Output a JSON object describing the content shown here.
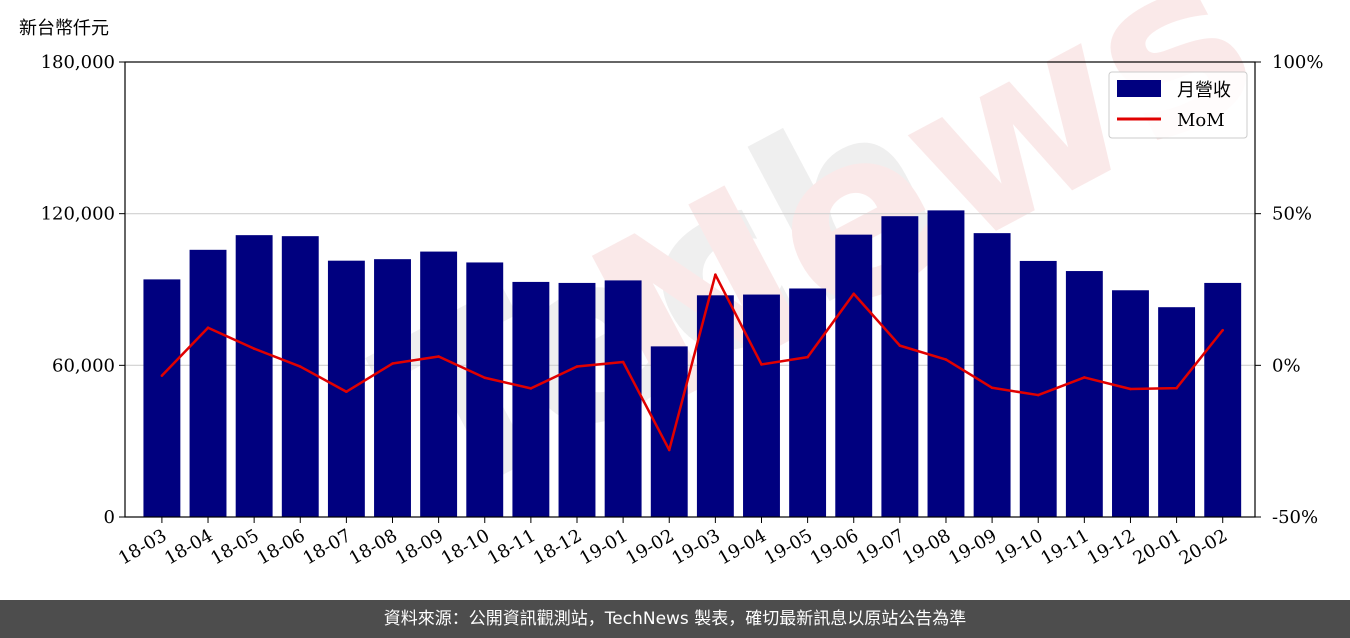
{
  "chart_data": {
    "type": "bar",
    "unit_label": "新台幣仟元",
    "categories": [
      "18-03",
      "18-04",
      "18-05",
      "18-06",
      "18-07",
      "18-08",
      "18-09",
      "18-10",
      "18-11",
      "18-12",
      "19-01",
      "19-02",
      "19-03",
      "19-04",
      "19-05",
      "19-06",
      "19-07",
      "19-08",
      "19-09",
      "19-10",
      "19-11",
      "19-12",
      "20-01",
      "20-02"
    ],
    "series": [
      {
        "name": "月營收",
        "kind": "bar",
        "axis": "left",
        "color": "#00007f",
        "values": [
          94000,
          105700,
          111500,
          111100,
          101400,
          102000,
          105000,
          100700,
          93000,
          92600,
          93600,
          67500,
          87700,
          88000,
          90400,
          111700,
          119000,
          121300,
          112300,
          101300,
          97300,
          89700,
          83000,
          92600
        ]
      },
      {
        "name": "MoM",
        "kind": "line",
        "axis": "right",
        "color": "#e00000",
        "unit": "%",
        "values": [
          -3.4,
          12.4,
          5.5,
          -0.4,
          -8.7,
          0.6,
          2.9,
          -4.1,
          -7.6,
          -0.4,
          1.1,
          -27.9,
          29.9,
          0.3,
          2.7,
          23.6,
          6.5,
          1.9,
          -7.4,
          -9.8,
          -4.0,
          -7.8,
          -7.5,
          11.6
        ]
      }
    ],
    "y_left": {
      "ylim": [
        0,
        180000
      ],
      "ticks": [
        0,
        60000,
        120000,
        180000
      ],
      "tick_labels": [
        "0",
        "60,000",
        "120,000",
        "180,000"
      ]
    },
    "y_right": {
      "ylim": [
        -50,
        100
      ],
      "ticks": [
        -50,
        0,
        50,
        100
      ],
      "tick_labels": [
        "-50%",
        "0%",
        "50%",
        "100%"
      ]
    },
    "grid": "horizontal",
    "legend_placement": "top-right",
    "watermark": "TechNews"
  },
  "footer": {
    "text": "資料來源：公開資訊觀測站，TechNews 製表，確切最新訊息以原站公告為準"
  },
  "colors": {
    "bar": "#00007f",
    "line": "#e00000",
    "footer_bg": "#4d4d4d"
  }
}
